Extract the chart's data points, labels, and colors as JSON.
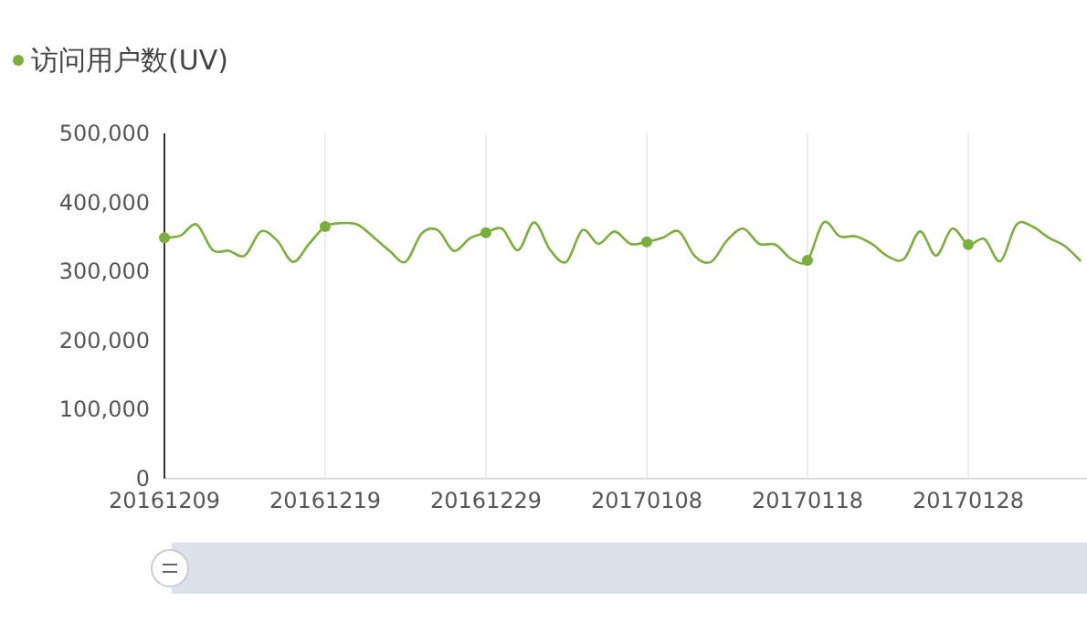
{
  "chart_data": {
    "type": "line",
    "legend": "top left",
    "grid": "x",
    "categories": [
      "20161209",
      null,
      null,
      null,
      null,
      null,
      null,
      null,
      null,
      null,
      "20161219",
      null,
      null,
      null,
      null,
      null,
      null,
      null,
      null,
      null,
      "20161229",
      null,
      null,
      null,
      null,
      null,
      null,
      null,
      null,
      null,
      "20170108",
      null,
      null,
      null,
      null,
      null,
      null,
      null,
      null,
      null,
      "20170118",
      null,
      null,
      null,
      null,
      null,
      null,
      null,
      null,
      null,
      "20170128",
      null,
      null,
      null,
      null,
      null,
      null,
      null
    ],
    "ylim": [
      0,
      500000
    ],
    "yticks": [
      {
        "value": 0,
        "label": "0"
      },
      {
        "value": 100000,
        "label": "100,000"
      },
      {
        "value": 200000,
        "label": "200,000"
      },
      {
        "value": 300000,
        "label": "300,000"
      },
      {
        "value": 400000,
        "label": "400,000"
      },
      {
        "value": 500000,
        "label": "500,000"
      }
    ],
    "series": [
      {
        "name": "访问用户数(UV)",
        "color": "#7aaf3e",
        "values": [
          349000,
          352000,
          368000,
          331000,
          330000,
          323000,
          358000,
          345000,
          314000,
          340000,
          365000,
          370000,
          368000,
          350000,
          330000,
          314000,
          355000,
          360000,
          330000,
          348000,
          356000,
          362000,
          331000,
          371000,
          331000,
          314000,
          360000,
          340000,
          358000,
          340000,
          343000,
          349000,
          358000,
          322000,
          314000,
          345000,
          362000,
          340000,
          339000,
          318000,
          316000,
          371000,
          351000,
          351000,
          340000,
          322000,
          318000,
          358000,
          323000,
          362000,
          339000,
          347000,
          315000,
          368000,
          365000,
          349000,
          337000,
          315000
        ]
      },
      {
        "type": "scatter",
        "marker": "circle",
        "color": "#7aaf3e",
        "x": [
          "20161209",
          "20161219",
          "20161229",
          "20170108",
          "20170118",
          "20170128"
        ],
        "values": [
          349000,
          365000,
          356000,
          343000,
          316000,
          339000
        ]
      }
    ]
  }
}
